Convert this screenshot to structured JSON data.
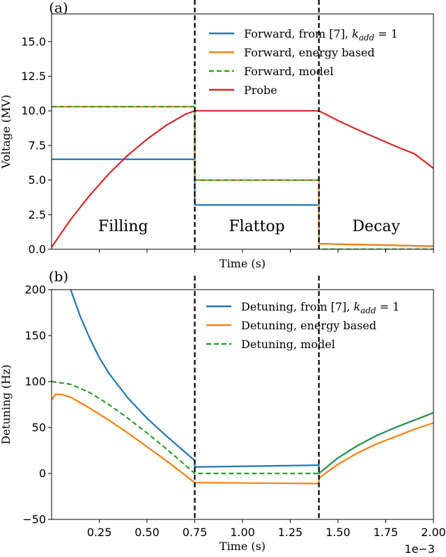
{
  "chart_data": [
    {
      "panel_label": "(a)",
      "type": "line",
      "xlabel": "Time (s)",
      "ylabel": "Voltage (MV)",
      "xlim": [
        0,
        0.002
      ],
      "ylim": [
        0,
        17
      ],
      "yticks": [
        0.0,
        2.5,
        5.0,
        7.5,
        10.0,
        12.5,
        15.0
      ],
      "ytick_labels": [
        "0.0",
        "2.5",
        "5.0",
        "7.5",
        "10.0",
        "12.5",
        "15.0"
      ],
      "show_xtick_labels": false,
      "grid": false,
      "legend_position": "top-right",
      "vlines": [
        0.00075,
        0.0014
      ],
      "region_labels": [
        {
          "text": "Filling",
          "x": 0.000375,
          "y": 0.8
        },
        {
          "text": "Flattop",
          "x": 0.001075,
          "y": 0.8
        },
        {
          "text": "Decay",
          "x": 0.0017,
          "y": 0.8
        }
      ],
      "series": [
        {
          "legend": "Forward, from [7], ",
          "legend_math": "k_add = 1",
          "color": "#1f77b4",
          "dash": "solid",
          "points": [
            [
              0,
              6.5
            ],
            [
              0.00075,
              6.5
            ],
            [
              0.00075,
              3.2
            ],
            [
              0.0014,
              3.2
            ],
            [
              0.0014,
              0.4
            ],
            [
              0.002,
              0.22
            ]
          ]
        },
        {
          "legend": "Forward, energy based",
          "color": "#ff7f0e",
          "dash": "solid",
          "points": [
            [
              0,
              10.3
            ],
            [
              0.00075,
              10.3
            ],
            [
              0.00075,
              5.0
            ],
            [
              0.0014,
              5.0
            ],
            [
              0.0014,
              0.4
            ],
            [
              0.002,
              0.22
            ]
          ]
        },
        {
          "legend": "Forward, model",
          "color": "#2ca02c",
          "dash": "dashed",
          "points": [
            [
              0,
              10.3
            ],
            [
              0.00075,
              10.3
            ],
            [
              0.00075,
              5.0
            ],
            [
              0.0014,
              5.0
            ],
            [
              0.0014,
              0.0
            ],
            [
              0.002,
              0.0
            ]
          ]
        },
        {
          "legend": "Probe",
          "color": "#d62728",
          "dash": "solid",
          "points": [
            [
              0,
              0.15
            ],
            [
              0.0001,
              2.15
            ],
            [
              0.0002,
              3.9
            ],
            [
              0.0003,
              5.45
            ],
            [
              0.0004,
              6.8
            ],
            [
              0.0005,
              7.95
            ],
            [
              0.0006,
              8.95
            ],
            [
              0.0007,
              9.75
            ],
            [
              0.00075,
              10.0
            ],
            [
              0.0014,
              10.0
            ],
            [
              0.0015,
              9.3
            ],
            [
              0.0016,
              8.65
            ],
            [
              0.0017,
              8.05
            ],
            [
              0.0018,
              7.45
            ],
            [
              0.0019,
              6.9
            ],
            [
              0.002,
              5.85
            ]
          ]
        }
      ]
    },
    {
      "panel_label": "(b)",
      "type": "line",
      "xlabel": "Time (s)",
      "ylabel": "Detuning (Hz)",
      "xlim": [
        0,
        0.002
      ],
      "ylim": [
        -50,
        200
      ],
      "yticks": [
        -50,
        0,
        50,
        100,
        150,
        200
      ],
      "ytick_labels": [
        "−50",
        "0",
        "50",
        "100",
        "150",
        "200"
      ],
      "xticks": [
        0.00025,
        0.0005,
        0.00075,
        0.001,
        0.00125,
        0.0015,
        0.00175,
        0.002
      ],
      "xtick_labels": [
        "0.25",
        "0.50",
        "0.75",
        "1.00",
        "1.25",
        "1.50",
        "1.75",
        "2.00"
      ],
      "x_offset_text": "1e−3",
      "grid": false,
      "legend_position": "top-right",
      "vlines": [
        0.00075,
        0.0014
      ],
      "series": [
        {
          "legend": "Detuning, from [7], ",
          "legend_math": "k_add = 1",
          "color": "#1f77b4",
          "dash": "solid",
          "points": [
            [
              0.0001,
              200
            ],
            [
              0.00015,
              171
            ],
            [
              0.0002,
              147
            ],
            [
              0.00025,
              126
            ],
            [
              0.0003,
              109
            ],
            [
              0.0004,
              82
            ],
            [
              0.0005,
              60
            ],
            [
              0.0006,
              41
            ],
            [
              0.0007,
              23
            ],
            [
              0.00075,
              14
            ],
            [
              0.00075,
              7
            ],
            [
              0.0014,
              9
            ],
            [
              0.0014,
              0
            ],
            [
              0.0015,
              17
            ],
            [
              0.0016,
              30
            ],
            [
              0.0017,
              41
            ],
            [
              0.0018,
              50
            ],
            [
              0.0019,
              58
            ],
            [
              0.002,
              66
            ]
          ]
        },
        {
          "legend": "Detuning, energy based",
          "color": "#ff7f0e",
          "dash": "solid",
          "points": [
            [
              0,
              80
            ],
            [
              2e-05,
              86
            ],
            [
              5e-05,
              86
            ],
            [
              0.0001,
              83
            ],
            [
              0.0002,
              71
            ],
            [
              0.0003,
              58
            ],
            [
              0.0004,
              44
            ],
            [
              0.0005,
              29
            ],
            [
              0.0006,
              14
            ],
            [
              0.0007,
              -2
            ],
            [
              0.00075,
              -10
            ],
            [
              0.0014,
              -11
            ],
            [
              0.0014,
              -5
            ],
            [
              0.0015,
              10
            ],
            [
              0.0016,
              22
            ],
            [
              0.0017,
              32
            ],
            [
              0.0018,
              40
            ],
            [
              0.0019,
              48
            ],
            [
              0.002,
              55
            ]
          ]
        },
        {
          "legend": "Detuning, model",
          "color": "#2ca02c",
          "dash": "dashed",
          "points": [
            [
              0,
              100
            ],
            [
              0.0001,
              97
            ],
            [
              0.0002,
              88
            ],
            [
              0.0003,
              75
            ],
            [
              0.0004,
              60
            ],
            [
              0.0005,
              44
            ],
            [
              0.0006,
              27
            ],
            [
              0.0007,
              9
            ],
            [
              0.00075,
              0
            ],
            [
              0.0014,
              0
            ],
            [
              0.0015,
              17
            ],
            [
              0.0016,
              30
            ],
            [
              0.0017,
              41
            ],
            [
              0.0018,
              50
            ],
            [
              0.0019,
              58
            ],
            [
              0.002,
              66
            ]
          ]
        }
      ]
    }
  ]
}
